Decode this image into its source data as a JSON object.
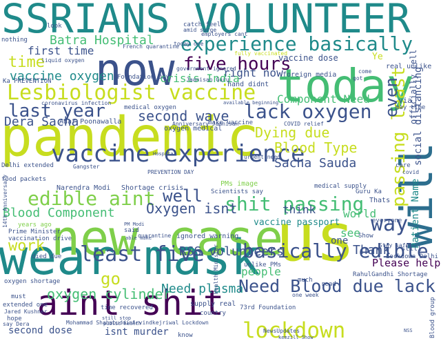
{
  "palette": {
    "yellow": "#c7dd1f",
    "lime": "#7fcf4a",
    "green": "#44bd74",
    "teal": "#1f8a8a",
    "blue": "#2d6e8e",
    "slate": "#3b528b",
    "purple": "#482878",
    "dark": "#440154"
  },
  "words": [
    {
      "text": "SSRIANS VOLUNTEER",
      "color": "teal"
    },
    {
      "text": "pandemic",
      "color": "yellow"
    },
    {
      "text": "wear mask",
      "color": "teal"
    },
    {
      "text": "lockdown",
      "color": "yellow"
    },
    {
      "text": "now",
      "color": "slate"
    },
    {
      "text": "new case",
      "color": "lime"
    },
    {
      "text": "us",
      "color": "yellow"
    },
    {
      "text": "today",
      "color": "green"
    },
    {
      "text": "will",
      "color": "blue"
    },
    {
      "text": "aint shit",
      "color": "dark"
    },
    {
      "text": "vaccine experience",
      "color": "slate"
    },
    {
      "text": "Lesbiologist vaccine",
      "color": "yellow"
    },
    {
      "text": "experience basically",
      "color": "teal"
    },
    {
      "text": "basically edible",
      "color": "slate"
    },
    {
      "text": "Need Blood due lack",
      "color": "slate"
    },
    {
      "text": "lack oxygen",
      "color": "slate"
    },
    {
      "text": "shit passing",
      "color": "green"
    },
    {
      "text": "least five",
      "color": "slate"
    },
    {
      "text": "edible aint",
      "color": "lime"
    },
    {
      "text": "last year",
      "color": "slate"
    },
    {
      "text": "five hours",
      "color": "dark"
    },
    {
      "text": "Batra Hospital",
      "color": "green"
    },
    {
      "text": "Dying due",
      "color": "yellow"
    },
    {
      "text": "Blood Type",
      "color": "yellow"
    },
    {
      "text": "passing least",
      "color": "yellow"
    },
    {
      "text": "time",
      "color": "yellow"
    },
    {
      "text": "work",
      "color": "yellow"
    },
    {
      "text": "way",
      "color": "slate"
    },
    {
      "text": "go",
      "color": "yellow"
    },
    {
      "text": "well",
      "color": "slate"
    },
    {
      "text": "second wave",
      "color": "slate"
    },
    {
      "text": "Oxygen isnt",
      "color": "slate"
    },
    {
      "text": "oxygen cylinder",
      "color": "green"
    },
    {
      "text": "RSS volunteers",
      "color": "slate"
    },
    {
      "text": "Need plasma",
      "color": "teal"
    },
    {
      "text": "Please help",
      "color": "dark"
    },
    {
      "text": "people",
      "color": "green"
    },
    {
      "text": "Sacha Sauda",
      "color": "slate"
    },
    {
      "text": "Dera Sacha",
      "color": "slate"
    },
    {
      "text": "right now",
      "color": "slate"
    },
    {
      "text": "Component Need",
      "color": "green"
    },
    {
      "text": "Blood Component",
      "color": "green"
    },
    {
      "text": "vaccine oxygen",
      "color": "teal"
    },
    {
      "text": "first time",
      "color": "slate"
    },
    {
      "text": "crisis India",
      "color": "green"
    },
    {
      "text": "even",
      "color": "slate"
    },
    {
      "text": "Thank",
      "color": "slate"
    },
    {
      "text": "see",
      "color": "green"
    },
    {
      "text": "think",
      "color": "slate"
    },
    {
      "text": "world",
      "color": "green"
    },
    {
      "text": "one",
      "color": "slate"
    },
    {
      "text": "vaccine passport",
      "color": "teal"
    },
    {
      "text": "social distancing",
      "color": "slate"
    },
    {
      "text": "Patient Name",
      "color": "teal"
    },
    {
      "text": "second dose",
      "color": "slate"
    },
    {
      "text": "isnt murder",
      "color": "slate"
    },
    {
      "text": "officially cell",
      "color": "slate"
    },
    {
      "text": "vaccine dose",
      "color": "slate"
    },
    {
      "text": "oxygen medical",
      "color": "slate"
    },
    {
      "text": "Ye",
      "color": "yellow"
    },
    {
      "text": "via",
      "color": "slate"
    },
    {
      "text": "foreign media",
      "color": "slate"
    },
    {
      "text": "hand didnt",
      "color": "slate"
    },
    {
      "text": "real unlike",
      "color": "slate"
    },
    {
      "text": "may time",
      "color": "slate"
    },
    {
      "text": "Adar Poonawalla",
      "color": "slate"
    },
    {
      "text": "Narendra Modi",
      "color": "slate"
    },
    {
      "text": "Shortage crisis",
      "color": "slate"
    },
    {
      "text": "ignored warning",
      "color": "slate"
    },
    {
      "text": "PMs image",
      "color": "lime"
    },
    {
      "text": "Scientists say",
      "color": "slate"
    },
    {
      "text": "medical supply",
      "color": "slate"
    },
    {
      "text": "Guru Ka",
      "color": "slate"
    },
    {
      "text": "Thats",
      "color": "slate"
    },
    {
      "text": "still",
      "color": "slate"
    },
    {
      "text": "Lockdown Delhi",
      "color": "slate"
    },
    {
      "text": "RahulGandhi Shortage",
      "color": "slate"
    },
    {
      "text": "73rd Foundation",
      "color": "slate"
    },
    {
      "text": "unlike PMs",
      "color": "slate"
    },
    {
      "text": "oxygen shortage",
      "color": "slate"
    },
    {
      "text": "Delhi extended",
      "color": "slate"
    },
    {
      "text": "food packets",
      "color": "slate"
    },
    {
      "text": "Prime Minister",
      "color": "slate"
    },
    {
      "text": "vaccination drive",
      "color": "slate"
    },
    {
      "text": "years ago",
      "color": "lime"
    },
    {
      "text": "medical oxygen",
      "color": "slate"
    },
    {
      "text": "make vaccine",
      "color": "slate"
    },
    {
      "text": "Foundation Day",
      "color": "slate"
    },
    {
      "text": "supply real",
      "color": "slate"
    },
    {
      "text": "time recovered",
      "color": "slate"
    },
    {
      "text": "extended one",
      "color": "slate"
    },
    {
      "text": "Jared Kushner",
      "color": "slate"
    },
    {
      "text": "must",
      "color": "slate"
    },
    {
      "text": "hope",
      "color": "slate"
    },
    {
      "text": "say Dera",
      "color": "slate"
    },
    {
      "text": "died due",
      "color": "slate"
    },
    {
      "text": "country",
      "color": "slate"
    },
    {
      "text": "know",
      "color": "slate"
    },
    {
      "text": "read",
      "color": "slate"
    },
    {
      "text": "much",
      "color": "slate"
    },
    {
      "text": "Show",
      "color": "slate"
    },
    {
      "text": "everyone",
      "color": "slate"
    },
    {
      "text": "quarantine",
      "color": "slate"
    },
    {
      "text": "look",
      "color": "slate"
    },
    {
      "text": "nothing",
      "color": "slate"
    },
    {
      "text": "catch feel",
      "color": "slate"
    },
    {
      "text": "amid surge",
      "color": "slate"
    },
    {
      "text": "employers cant",
      "color": "slate"
    },
    {
      "text": "fully vaccinated",
      "color": "yellow"
    },
    {
      "text": "come",
      "color": "slate"
    },
    {
      "text": "today one",
      "color": "slate"
    },
    {
      "text": "coronavirus infection",
      "color": "slate"
    },
    {
      "text": "Ka PREVENTION",
      "color": "slate"
    },
    {
      "text": "French quarantine",
      "color": "slate"
    },
    {
      "text": "Mohammad Shahabuddin",
      "color": "slate"
    },
    {
      "text": "Arvindkejriwal Lockdown",
      "color": "slate"
    },
    {
      "text": "one week",
      "color": "slate"
    },
    {
      "text": "Stay safe",
      "color": "slate"
    },
    {
      "text": "PREVENTION DAY",
      "color": "slate"
    },
    {
      "text": "Anniversary Jaanisan",
      "color": "slate"
    },
    {
      "text": "Jaanisan Guru",
      "color": "slate"
    },
    {
      "text": "14th Anniversary",
      "color": "slate"
    },
    {
      "text": "government ignored",
      "color": "slate"
    },
    {
      "text": "care",
      "color": "slate"
    },
    {
      "text": "covid",
      "color": "slate"
    },
    {
      "text": "got",
      "color": "slate"
    },
    {
      "text": "Health Minister",
      "color": "slate"
    },
    {
      "text": "Gangster",
      "color": "slate"
    },
    {
      "text": "liquid oxygen",
      "color": "slate"
    },
    {
      "text": "said",
      "color": "slate"
    },
    {
      "text": "urgent need",
      "color": "slate"
    },
    {
      "text": "COVID relief",
      "color": "slate"
    },
    {
      "text": "available beginning",
      "color": "slate"
    },
    {
      "text": "Hospital",
      "color": "slate"
    },
    {
      "text": "PM Modi",
      "color": "slate"
    },
    {
      "text": "able make",
      "color": "slate"
    },
    {
      "text": "still stop",
      "color": "slate"
    },
    {
      "text": "public health",
      "color": "slate"
    },
    {
      "text": "Blood group",
      "color": "slate"
    },
    {
      "text": "NewsUpdates",
      "color": "slate"
    },
    {
      "text": "kemzill Show",
      "color": "slate"
    },
    {
      "text": "NSS",
      "color": "slate"
    }
  ]
}
